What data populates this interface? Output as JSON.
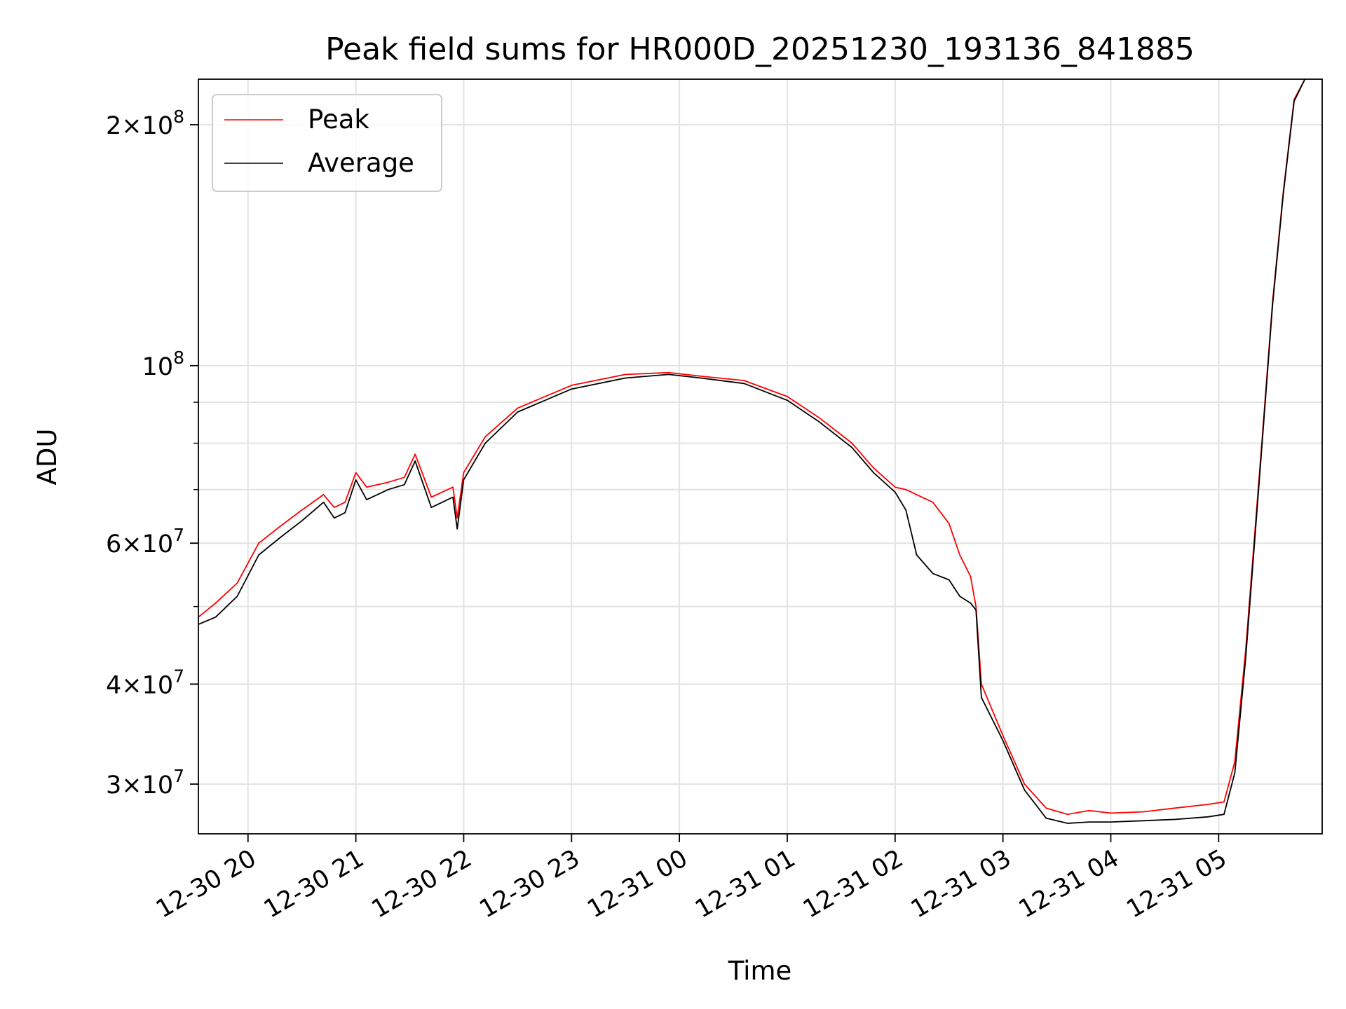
{
  "chart_data": {
    "type": "line",
    "title": "Peak field sums for HR000D_20251230_193136_841885",
    "xlabel": "Time",
    "ylabel": "ADU",
    "y_scale": "log",
    "ylim": [
      26000000,
      228000000
    ],
    "xlim_hours": [
      -0.46,
      9.96
    ],
    "grid": true,
    "legend_position": "upper-left",
    "x_ticks": [
      {
        "hour": 0,
        "label": "12-30 20"
      },
      {
        "hour": 1,
        "label": "12-30 21"
      },
      {
        "hour": 2,
        "label": "12-30 22"
      },
      {
        "hour": 3,
        "label": "12-30 23"
      },
      {
        "hour": 4,
        "label": "12-31 00"
      },
      {
        "hour": 5,
        "label": "12-31 01"
      },
      {
        "hour": 6,
        "label": "12-31 02"
      },
      {
        "hour": 7,
        "label": "12-31 03"
      },
      {
        "hour": 8,
        "label": "12-31 04"
      },
      {
        "hour": 9,
        "label": "12-31 05"
      }
    ],
    "y_ticks": [
      {
        "value": 30000000,
        "mant": "3",
        "exp": "7"
      },
      {
        "value": 40000000,
        "mant": "4",
        "exp": "7"
      },
      {
        "value": 60000000,
        "mant": "6",
        "exp": "7"
      },
      {
        "value": 100000000,
        "mant": "",
        "exp": "8"
      },
      {
        "value": 200000000,
        "mant": "2",
        "exp": "8"
      }
    ],
    "y_minor_ticks": [
      50000000,
      70000000,
      80000000,
      90000000
    ],
    "times_symbol": "×",
    "x_time_reference": "2025-12-30 20:00",
    "series": [
      {
        "name": "Peak",
        "color": "#ff0000",
        "x_hours": [
          -0.46,
          -0.3,
          -0.1,
          0.1,
          0.3,
          0.5,
          0.7,
          0.8,
          0.9,
          1.0,
          1.1,
          1.3,
          1.45,
          1.55,
          1.7,
          1.9,
          1.94,
          2.0,
          2.2,
          2.5,
          3.0,
          3.5,
          3.9,
          4.2,
          4.6,
          5.0,
          5.3,
          5.6,
          5.8,
          6.0,
          6.1,
          6.2,
          6.35,
          6.5,
          6.6,
          6.7,
          6.75,
          6.8,
          7.0,
          7.2,
          7.4,
          7.6,
          7.8,
          8.0,
          8.3,
          8.6,
          8.9,
          9.05,
          9.15,
          9.25,
          9.4,
          9.5,
          9.6,
          9.7,
          9.8
        ],
        "y": [
          48500000,
          50500000,
          53500000,
          60000000,
          63000000,
          66000000,
          69000000,
          66500000,
          67500000,
          73500000,
          70500000,
          71500000,
          72500000,
          77500000,
          68500000,
          70500000,
          64500000,
          73500000,
          81500000,
          88500000,
          94500000,
          97500000,
          98000000,
          97000000,
          95800000,
          91500000,
          86000000,
          80000000,
          74500000,
          70500000,
          70000000,
          69000000,
          67500000,
          63500000,
          58000000,
          54500000,
          50000000,
          40000000,
          34500000,
          30000000,
          28000000,
          27500000,
          27800000,
          27600000,
          27700000,
          28000000,
          28300000,
          28500000,
          32000000,
          44000000,
          80000000,
          120000000,
          165000000,
          215000000,
          228000000
        ]
      },
      {
        "name": "Average",
        "color": "#000000",
        "x_hours": [
          -0.46,
          -0.3,
          -0.1,
          0.1,
          0.3,
          0.5,
          0.7,
          0.8,
          0.9,
          1.0,
          1.1,
          1.3,
          1.45,
          1.55,
          1.7,
          1.9,
          1.94,
          2.0,
          2.2,
          2.5,
          3.0,
          3.5,
          3.9,
          4.2,
          4.6,
          5.0,
          5.3,
          5.6,
          5.8,
          6.0,
          6.1,
          6.2,
          6.35,
          6.5,
          6.6,
          6.7,
          6.75,
          6.8,
          7.0,
          7.2,
          7.4,
          7.6,
          7.8,
          8.0,
          8.3,
          8.6,
          8.9,
          9.05,
          9.15,
          9.25,
          9.4,
          9.5,
          9.6,
          9.7,
          9.8
        ],
        "y": [
          47500000,
          48500000,
          51500000,
          58000000,
          61000000,
          64000000,
          67500000,
          64500000,
          65500000,
          72000000,
          68000000,
          70000000,
          71000000,
          76000000,
          66500000,
          68500000,
          62500000,
          72000000,
          80000000,
          87500000,
          93500000,
          96500000,
          97500000,
          96500000,
          95000000,
          90500000,
          85000000,
          79000000,
          73500000,
          69500000,
          66000000,
          58000000,
          55000000,
          54000000,
          51500000,
          50500000,
          49500000,
          38500000,
          34000000,
          29500000,
          27200000,
          26800000,
          26900000,
          26900000,
          27000000,
          27100000,
          27300000,
          27500000,
          31000000,
          43000000,
          79000000,
          119000000,
          164000000,
          214000000,
          228000000
        ]
      }
    ]
  }
}
